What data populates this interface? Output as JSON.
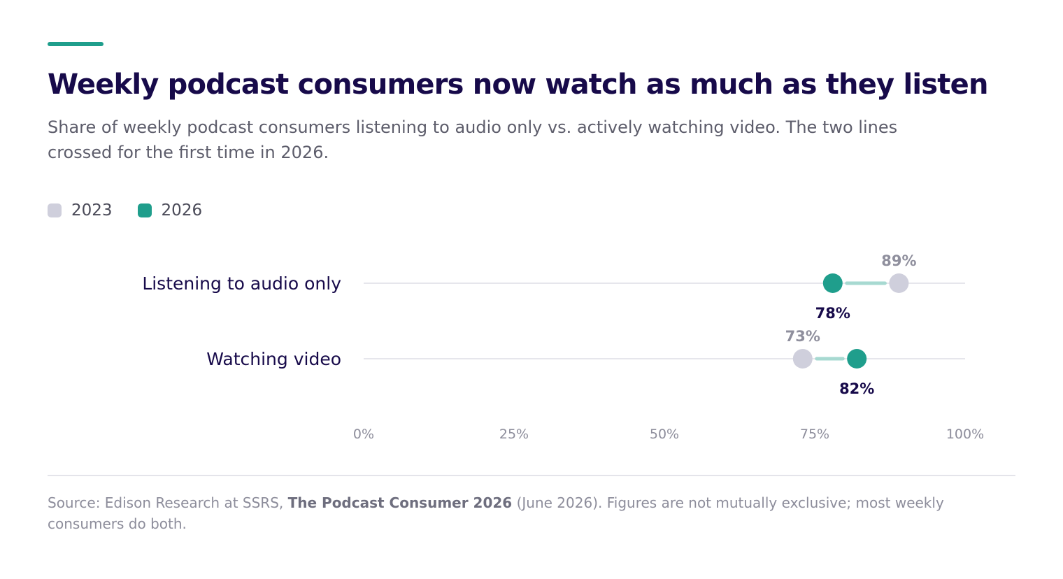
{
  "header": {
    "title": "Weekly podcast consumers now watch as much as they listen",
    "subtitle": "Share of weekly podcast consumers listening to audio only vs. actively watching video. The two lines crossed for the first time in 2026."
  },
  "colors": {
    "accent": "#1f9e8c",
    "series_2023": "#cfcfdc",
    "series_2026": "#1f9e8c",
    "connector": "#a7d9d1",
    "title": "#170a4a",
    "value_2023": "#8f8f9d",
    "value_2026": "#170a4a"
  },
  "chart_data": {
    "type": "dumbbell",
    "categories": [
      "Listening to audio only",
      "Watching video"
    ],
    "series": [
      {
        "name": "2023",
        "values": [
          89,
          73
        ]
      },
      {
        "name": "2026",
        "values": [
          78,
          82
        ]
      }
    ],
    "value_labels": [
      [
        "89%",
        "73%"
      ],
      [
        "78%",
        "82%"
      ]
    ],
    "xlim": [
      0,
      100
    ],
    "x_ticks": [
      0,
      25,
      50,
      75,
      100
    ],
    "x_tick_labels": [
      "0%",
      "25%",
      "50%",
      "75%",
      "100%"
    ],
    "legend": "top-left",
    "grid": false
  },
  "footer": {
    "source_prefix": "Source: Edison Research at SSRS, ",
    "source_title": "The Podcast Consumer 2026",
    "source_suffix": " (June 2026). Figures are not mutually exclusive; most weekly consumers do both."
  }
}
